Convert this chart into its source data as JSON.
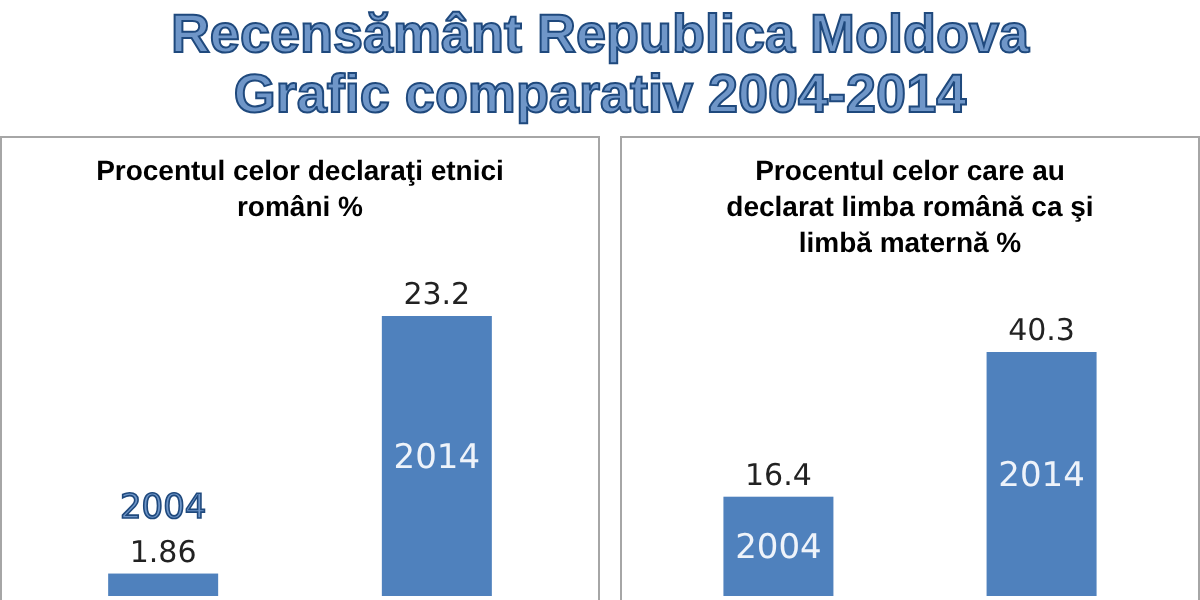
{
  "chart_data": [
    {
      "type": "bar",
      "title": "Procentul celor declaraţi etnici români %",
      "annotations": [
        "Recensământ Republica Moldova",
        "Grafic comparativ 2004-2014"
      ],
      "categories": [
        "2004",
        "2014"
      ],
      "values": [
        1.86,
        23.2
      ],
      "color": "#4f81bd",
      "data_labels": true
    },
    {
      "type": "bar",
      "title": "Procentul celor care au declarat limba română ca şi limbă maternă %",
      "categories": [
        "2004",
        "2014"
      ],
      "values": [
        16.4,
        40.3
      ],
      "color": "#4f81bd",
      "data_labels": true
    }
  ]
}
